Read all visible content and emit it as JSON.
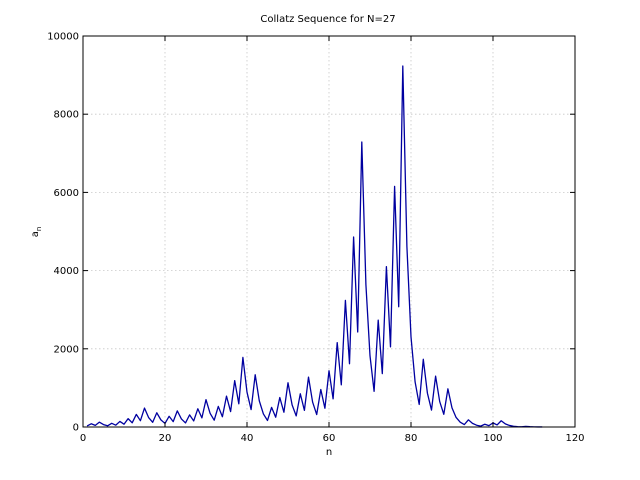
{
  "chart_data": {
    "type": "line",
    "title": "Collatz Sequence for N=27",
    "xlabel": "n",
    "ylabel": "a",
    "ylabel_subscript": "n",
    "xlim": [
      0,
      120
    ],
    "ylim": [
      0,
      10000
    ],
    "xticks": [
      "0",
      "20",
      "40",
      "60",
      "80",
      "100",
      "120"
    ],
    "yticks": [
      "0",
      "2000",
      "4000",
      "6000",
      "8000",
      "10000"
    ],
    "grid": true,
    "color": "#0000a0",
    "start": 27
  }
}
